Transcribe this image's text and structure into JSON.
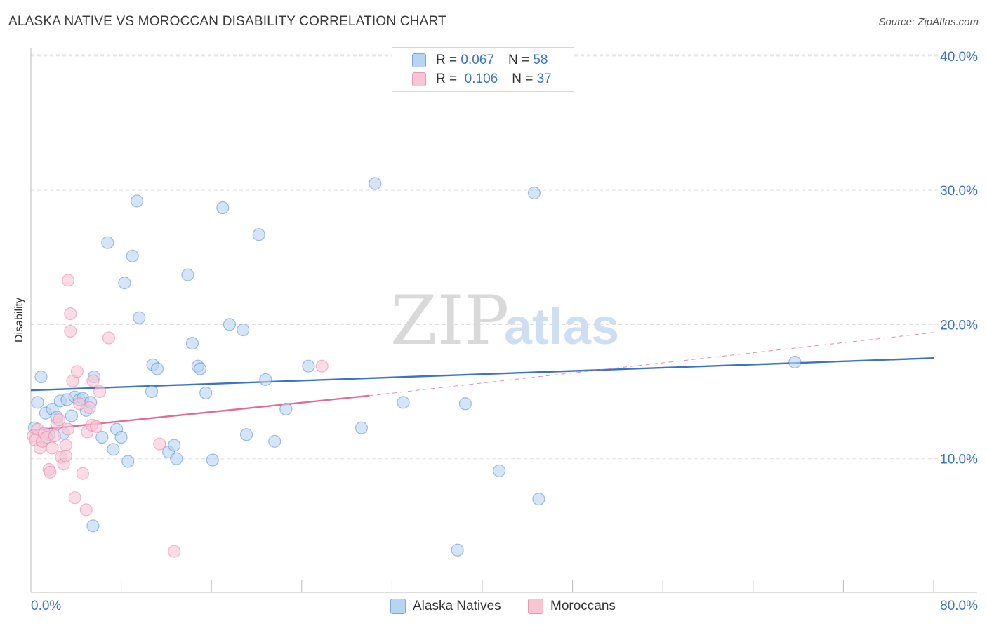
{
  "title": "ALASKA NATIVE VS MOROCCAN DISABILITY CORRELATION CHART",
  "source": "Source: ZipAtlas.com",
  "watermark": {
    "zip": "ZIP",
    "atlas": "atlas"
  },
  "legend": {
    "rows": [
      {
        "r_label": "R =",
        "r_value": "0.067",
        "n_label": "N =",
        "n_value": "58",
        "fill": "#b8d4f4",
        "stroke": "#7aa7e0"
      },
      {
        "r_label": "R =",
        "r_value": "0.106",
        "n_label": "N =",
        "n_value": "37",
        "fill": "#f9c4d4",
        "stroke": "#e89ab3"
      }
    ]
  },
  "bottom_legend": [
    {
      "label": "Alaska Natives",
      "fill": "#b8d4f4",
      "stroke": "#7aa7e0"
    },
    {
      "label": "Moroccans",
      "fill": "#f9c4d4",
      "stroke": "#e89ab3"
    }
  ],
  "chart_data": {
    "type": "scatter",
    "title": "ALASKA NATIVE VS MOROCCAN DISABILITY CORRELATION CHART",
    "xlabel": "",
    "ylabel": "Disability",
    "xlim": [
      0,
      80
    ],
    "ylim": [
      0,
      42
    ],
    "x_tick_labels": [
      "0.0%",
      "80.0%"
    ],
    "y_ticks": [
      10,
      20,
      30,
      40
    ],
    "y_tick_labels": [
      "10.0%",
      "20.0%",
      "30.0%",
      "40.0%"
    ],
    "grid": true,
    "legend_placement": "top-center",
    "series": [
      {
        "name": "Alaska Natives",
        "color": "#3b73c8",
        "fill": "#b8d4f4",
        "points": [
          [
            0.3,
            12.3
          ],
          [
            0.6,
            14.2
          ],
          [
            0.9,
            16.1
          ],
          [
            1.3,
            13.4
          ],
          [
            1.6,
            11.8
          ],
          [
            1.9,
            13.7
          ],
          [
            2.3,
            13.1
          ],
          [
            2.6,
            14.3
          ],
          [
            2.9,
            11.9
          ],
          [
            3.2,
            14.4
          ],
          [
            3.6,
            13.2
          ],
          [
            3.9,
            14.6
          ],
          [
            4.3,
            14.4
          ],
          [
            4.6,
            14.5
          ],
          [
            4.9,
            13.6
          ],
          [
            5.3,
            14.2
          ],
          [
            5.6,
            16.1
          ],
          [
            5.5,
            5.0
          ],
          [
            6.3,
            11.6
          ],
          [
            6.8,
            26.1
          ],
          [
            7.3,
            10.7
          ],
          [
            7.6,
            12.2
          ],
          [
            8.0,
            11.6
          ],
          [
            8.3,
            23.1
          ],
          [
            8.6,
            9.8
          ],
          [
            9.0,
            25.1
          ],
          [
            9.4,
            29.2
          ],
          [
            9.6,
            20.5
          ],
          [
            10.7,
            15.0
          ],
          [
            10.8,
            17.0
          ],
          [
            11.2,
            16.7
          ],
          [
            12.2,
            10.5
          ],
          [
            12.7,
            11.0
          ],
          [
            12.9,
            10.0
          ],
          [
            13.9,
            23.7
          ],
          [
            14.3,
            18.6
          ],
          [
            14.8,
            16.9
          ],
          [
            15.0,
            16.7
          ],
          [
            15.5,
            14.9
          ],
          [
            16.1,
            9.9
          ],
          [
            17.0,
            28.7
          ],
          [
            17.6,
            20.0
          ],
          [
            18.8,
            19.6
          ],
          [
            19.1,
            11.8
          ],
          [
            20.2,
            26.7
          ],
          [
            20.8,
            15.9
          ],
          [
            21.6,
            11.3
          ],
          [
            22.6,
            13.7
          ],
          [
            24.6,
            16.9
          ],
          [
            29.3,
            12.3
          ],
          [
            30.5,
            30.5
          ],
          [
            33.0,
            14.2
          ],
          [
            37.8,
            3.2
          ],
          [
            38.5,
            14.1
          ],
          [
            41.5,
            9.1
          ],
          [
            44.6,
            29.8
          ],
          [
            45.0,
            7.0
          ],
          [
            67.7,
            17.2
          ]
        ],
        "trend": {
          "x": [
            0,
            80
          ],
          "y": [
            15.1,
            17.5
          ]
        }
      },
      {
        "name": "Moroccans",
        "color": "#e56a98",
        "fill": "#f9c4d4",
        "points": [
          [
            0.2,
            11.7
          ],
          [
            0.4,
            11.4
          ],
          [
            0.6,
            12.2
          ],
          [
            0.8,
            10.8
          ],
          [
            1.0,
            11.3
          ],
          [
            1.2,
            11.9
          ],
          [
            1.4,
            11.6
          ],
          [
            1.6,
            9.2
          ],
          [
            1.7,
            9.0
          ],
          [
            1.9,
            10.8
          ],
          [
            2.1,
            11.7
          ],
          [
            2.3,
            12.6
          ],
          [
            2.5,
            12.9
          ],
          [
            2.7,
            10.1
          ],
          [
            2.9,
            9.6
          ],
          [
            3.1,
            11.0
          ],
          [
            3.3,
            12.2
          ],
          [
            3.1,
            10.2
          ],
          [
            3.3,
            23.3
          ],
          [
            3.5,
            20.8
          ],
          [
            3.5,
            19.5
          ],
          [
            3.7,
            15.8
          ],
          [
            3.9,
            7.1
          ],
          [
            4.1,
            16.5
          ],
          [
            4.3,
            14.1
          ],
          [
            4.6,
            8.9
          ],
          [
            4.9,
            6.2
          ],
          [
            5.0,
            12.0
          ],
          [
            5.2,
            13.8
          ],
          [
            5.4,
            12.5
          ],
          [
            5.5,
            15.8
          ],
          [
            5.8,
            12.4
          ],
          [
            6.1,
            15.0
          ],
          [
            6.9,
            19.0
          ],
          [
            11.4,
            11.1
          ],
          [
            12.7,
            3.1
          ],
          [
            25.8,
            16.9
          ]
        ],
        "trend": {
          "x": [
            0,
            30
          ],
          "y": [
            12.1,
            14.7
          ]
        },
        "trend_extension": {
          "x": [
            30,
            80
          ],
          "y": [
            14.7,
            19.4
          ]
        }
      }
    ]
  }
}
